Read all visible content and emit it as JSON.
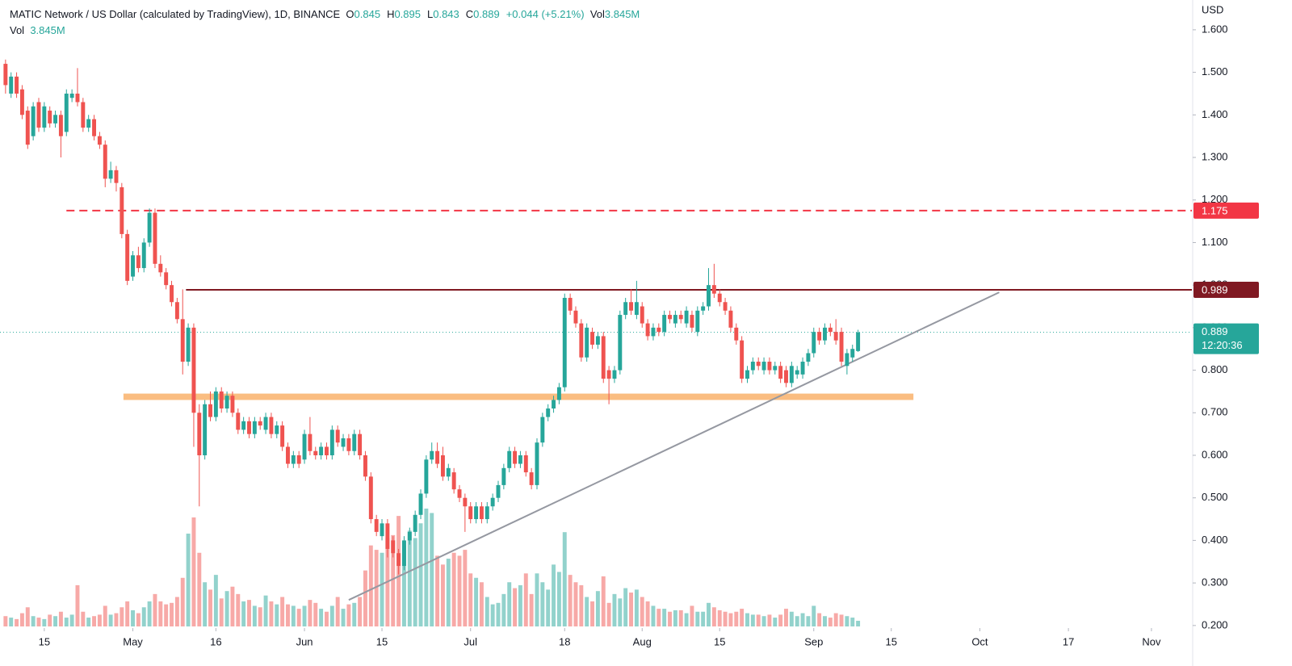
{
  "chart_data": {
    "type": "candlestick",
    "title": "MATIC Network / US Dollar (calculated by TradingView), 1D, BINANCE",
    "header": {
      "items": [
        {
          "key": "O",
          "value": 0.845
        },
        {
          "key": "H",
          "value": 0.895
        },
        {
          "key": "L",
          "value": 0.843
        },
        {
          "key": "C",
          "value": 0.889
        }
      ],
      "change": "+0.044 (+5.21%)",
      "vol_key": "Vol",
      "vol_value": "3.845M"
    },
    "y_axis_label": "USD",
    "up_color": "#26a69a",
    "down_color": "#ef5350",
    "xlim": [
      -1,
      214.3
    ],
    "ylim": [
      0.194,
      1.67
    ],
    "xticks": [
      {
        "value": 7,
        "label": "15"
      },
      {
        "value": 23,
        "label": "May"
      },
      {
        "value": 38,
        "label": "16"
      },
      {
        "value": 54,
        "label": "Jun"
      },
      {
        "value": 68,
        "label": "15"
      },
      {
        "value": 84,
        "label": "Jul"
      },
      {
        "value": 101,
        "label": "18"
      },
      {
        "value": 115,
        "label": "Aug"
      },
      {
        "value": 129,
        "label": "15"
      },
      {
        "value": 146,
        "label": "Sep"
      },
      {
        "value": 160,
        "label": "15"
      },
      {
        "value": 176,
        "label": "Oct"
      },
      {
        "value": 192,
        "label": "17"
      },
      {
        "value": 207,
        "label": "Nov"
      }
    ],
    "yticks": [
      {
        "value": 1.6,
        "label": "1.600"
      },
      {
        "value": 1.5,
        "label": "1.500"
      },
      {
        "value": 1.4,
        "label": "1.400"
      },
      {
        "value": 1.3,
        "label": "1.300"
      },
      {
        "value": 1.2,
        "label": "1.200"
      },
      {
        "value": 1.1,
        "label": "1.100"
      },
      {
        "value": 1.0,
        "label": "1.000"
      },
      {
        "value": 0.9,
        "label": "0.900"
      },
      {
        "value": 0.8,
        "label": "0.800"
      },
      {
        "value": 0.7,
        "label": "0.700"
      },
      {
        "value": 0.6,
        "label": "0.600"
      },
      {
        "value": 0.5,
        "label": "0.500"
      },
      {
        "value": 0.4,
        "label": "0.400"
      },
      {
        "value": 0.3,
        "label": "0.300"
      },
      {
        "value": 0.2,
        "label": "0.200"
      }
    ],
    "ohlc": [
      [
        1.52,
        1.53,
        1.45,
        1.47
      ],
      [
        1.45,
        1.5,
        1.44,
        1.49
      ],
      [
        1.49,
        1.5,
        1.44,
        1.45
      ],
      [
        1.46,
        1.47,
        1.39,
        1.4
      ],
      [
        1.41,
        1.42,
        1.32,
        1.33
      ],
      [
        1.35,
        1.43,
        1.34,
        1.42
      ],
      [
        1.43,
        1.44,
        1.36,
        1.37
      ],
      [
        1.37,
        1.43,
        1.36,
        1.42
      ],
      [
        1.41,
        1.42,
        1.37,
        1.38
      ],
      [
        1.38,
        1.41,
        1.37,
        1.4
      ],
      [
        1.4,
        1.41,
        1.3,
        1.35
      ],
      [
        1.36,
        1.46,
        1.35,
        1.45
      ],
      [
        1.44,
        1.46,
        1.43,
        1.45
      ],
      [
        1.45,
        1.51,
        1.42,
        1.43
      ],
      [
        1.43,
        1.44,
        1.36,
        1.37
      ],
      [
        1.37,
        1.4,
        1.36,
        1.39
      ],
      [
        1.39,
        1.4,
        1.34,
        1.35
      ],
      [
        1.35,
        1.36,
        1.32,
        1.33
      ],
      [
        1.33,
        1.34,
        1.23,
        1.25
      ],
      [
        1.25,
        1.29,
        1.24,
        1.27
      ],
      [
        1.27,
        1.28,
        1.22,
        1.24
      ],
      [
        1.23,
        1.24,
        1.11,
        1.12
      ],
      [
        1.12,
        1.13,
        1.0,
        1.01
      ],
      [
        1.02,
        1.08,
        1.01,
        1.07
      ],
      [
        1.07,
        1.09,
        1.03,
        1.04
      ],
      [
        1.04,
        1.11,
        1.03,
        1.1
      ],
      [
        1.1,
        1.18,
        1.09,
        1.17
      ],
      [
        1.17,
        1.18,
        1.04,
        1.05
      ],
      [
        1.05,
        1.07,
        1.02,
        1.03
      ],
      [
        1.03,
        1.04,
        0.99,
        1.0
      ],
      [
        1.0,
        1.01,
        0.95,
        0.96
      ],
      [
        0.96,
        0.97,
        0.91,
        0.92
      ],
      [
        0.92,
        0.99,
        0.79,
        0.82
      ],
      [
        0.82,
        0.91,
        0.81,
        0.9
      ],
      [
        0.9,
        0.91,
        0.62,
        0.7
      ],
      [
        0.7,
        0.72,
        0.48,
        0.6
      ],
      [
        0.6,
        0.73,
        0.59,
        0.72
      ],
      [
        0.72,
        0.75,
        0.68,
        0.69
      ],
      [
        0.69,
        0.76,
        0.68,
        0.75
      ],
      [
        0.75,
        0.76,
        0.7,
        0.71
      ],
      [
        0.71,
        0.75,
        0.7,
        0.74
      ],
      [
        0.74,
        0.75,
        0.69,
        0.7
      ],
      [
        0.7,
        0.71,
        0.65,
        0.66
      ],
      [
        0.66,
        0.69,
        0.65,
        0.68
      ],
      [
        0.68,
        0.69,
        0.64,
        0.65
      ],
      [
        0.65,
        0.69,
        0.64,
        0.68
      ],
      [
        0.68,
        0.69,
        0.66,
        0.67
      ],
      [
        0.66,
        0.7,
        0.65,
        0.69
      ],
      [
        0.69,
        0.7,
        0.64,
        0.65
      ],
      [
        0.65,
        0.68,
        0.64,
        0.67
      ],
      [
        0.67,
        0.68,
        0.61,
        0.62
      ],
      [
        0.62,
        0.63,
        0.57,
        0.58
      ],
      [
        0.58,
        0.61,
        0.57,
        0.6
      ],
      [
        0.6,
        0.61,
        0.57,
        0.58
      ],
      [
        0.59,
        0.66,
        0.58,
        0.65
      ],
      [
        0.65,
        0.69,
        0.6,
        0.61
      ],
      [
        0.61,
        0.62,
        0.59,
        0.6
      ],
      [
        0.6,
        0.63,
        0.59,
        0.62
      ],
      [
        0.62,
        0.63,
        0.59,
        0.6
      ],
      [
        0.6,
        0.67,
        0.59,
        0.66
      ],
      [
        0.66,
        0.67,
        0.62,
        0.63
      ],
      [
        0.62,
        0.65,
        0.61,
        0.64
      ],
      [
        0.64,
        0.65,
        0.6,
        0.61
      ],
      [
        0.61,
        0.66,
        0.6,
        0.65
      ],
      [
        0.65,
        0.66,
        0.59,
        0.6
      ],
      [
        0.6,
        0.61,
        0.54,
        0.55
      ],
      [
        0.55,
        0.56,
        0.44,
        0.45
      ],
      [
        0.45,
        0.46,
        0.41,
        0.42
      ],
      [
        0.41,
        0.45,
        0.4,
        0.44
      ],
      [
        0.44,
        0.45,
        0.36,
        0.38
      ],
      [
        0.4,
        0.41,
        0.36,
        0.37
      ],
      [
        0.37,
        0.38,
        0.32,
        0.34
      ],
      [
        0.34,
        0.41,
        0.33,
        0.4
      ],
      [
        0.4,
        0.43,
        0.39,
        0.42
      ],
      [
        0.42,
        0.47,
        0.41,
        0.46
      ],
      [
        0.46,
        0.52,
        0.45,
        0.51
      ],
      [
        0.51,
        0.6,
        0.5,
        0.59
      ],
      [
        0.59,
        0.63,
        0.58,
        0.61
      ],
      [
        0.61,
        0.63,
        0.57,
        0.58
      ],
      [
        0.6,
        0.62,
        0.54,
        0.55
      ],
      [
        0.55,
        0.58,
        0.54,
        0.57
      ],
      [
        0.56,
        0.57,
        0.51,
        0.52
      ],
      [
        0.52,
        0.53,
        0.49,
        0.5
      ],
      [
        0.5,
        0.51,
        0.42,
        0.48
      ],
      [
        0.48,
        0.49,
        0.44,
        0.45
      ],
      [
        0.45,
        0.49,
        0.44,
        0.48
      ],
      [
        0.48,
        0.49,
        0.44,
        0.45
      ],
      [
        0.45,
        0.49,
        0.44,
        0.48
      ],
      [
        0.48,
        0.51,
        0.47,
        0.5
      ],
      [
        0.5,
        0.54,
        0.49,
        0.53
      ],
      [
        0.53,
        0.58,
        0.52,
        0.57
      ],
      [
        0.57,
        0.62,
        0.56,
        0.61
      ],
      [
        0.61,
        0.62,
        0.57,
        0.58
      ],
      [
        0.58,
        0.61,
        0.57,
        0.6
      ],
      [
        0.6,
        0.61,
        0.55,
        0.56
      ],
      [
        0.56,
        0.57,
        0.52,
        0.53
      ],
      [
        0.53,
        0.64,
        0.52,
        0.63
      ],
      [
        0.63,
        0.7,
        0.62,
        0.69
      ],
      [
        0.69,
        0.72,
        0.68,
        0.71
      ],
      [
        0.71,
        0.74,
        0.7,
        0.73
      ],
      [
        0.73,
        0.77,
        0.72,
        0.76
      ],
      [
        0.76,
        0.98,
        0.75,
        0.97
      ],
      [
        0.97,
        0.98,
        0.93,
        0.94
      ],
      [
        0.94,
        0.95,
        0.9,
        0.91
      ],
      [
        0.91,
        0.92,
        0.82,
        0.83
      ],
      [
        0.83,
        0.91,
        0.82,
        0.9
      ],
      [
        0.89,
        0.9,
        0.85,
        0.86
      ],
      [
        0.86,
        0.89,
        0.85,
        0.88
      ],
      [
        0.88,
        0.89,
        0.77,
        0.78
      ],
      [
        0.8,
        0.81,
        0.72,
        0.78
      ],
      [
        0.78,
        0.81,
        0.77,
        0.8
      ],
      [
        0.8,
        0.94,
        0.79,
        0.93
      ],
      [
        0.93,
        0.97,
        0.92,
        0.96
      ],
      [
        0.96,
        0.99,
        0.93,
        0.94
      ],
      [
        0.93,
        1.01,
        0.92,
        0.96
      ],
      [
        0.95,
        0.96,
        0.9,
        0.91
      ],
      [
        0.91,
        0.92,
        0.87,
        0.88
      ],
      [
        0.88,
        0.91,
        0.87,
        0.9
      ],
      [
        0.9,
        0.91,
        0.88,
        0.89
      ],
      [
        0.89,
        0.94,
        0.88,
        0.93
      ],
      [
        0.93,
        0.94,
        0.91,
        0.92
      ],
      [
        0.91,
        0.94,
        0.9,
        0.93
      ],
      [
        0.93,
        0.94,
        0.91,
        0.92
      ],
      [
        0.91,
        0.95,
        0.9,
        0.94
      ],
      [
        0.93,
        0.94,
        0.89,
        0.9
      ],
      [
        0.89,
        0.95,
        0.88,
        0.94
      ],
      [
        0.94,
        0.96,
        0.93,
        0.95
      ],
      [
        0.95,
        1.04,
        0.94,
        1.0
      ],
      [
        1.0,
        1.05,
        0.97,
        0.98
      ],
      [
        0.98,
        0.99,
        0.95,
        0.96
      ],
      [
        0.96,
        0.97,
        0.93,
        0.94
      ],
      [
        0.94,
        0.95,
        0.89,
        0.9
      ],
      [
        0.9,
        0.91,
        0.86,
        0.87
      ],
      [
        0.87,
        0.88,
        0.77,
        0.78
      ],
      [
        0.78,
        0.81,
        0.77,
        0.8
      ],
      [
        0.8,
        0.83,
        0.79,
        0.82
      ],
      [
        0.82,
        0.83,
        0.8,
        0.81
      ],
      [
        0.8,
        0.83,
        0.79,
        0.82
      ],
      [
        0.82,
        0.83,
        0.79,
        0.8
      ],
      [
        0.8,
        0.82,
        0.79,
        0.81
      ],
      [
        0.81,
        0.82,
        0.77,
        0.78
      ],
      [
        0.8,
        0.81,
        0.76,
        0.77
      ],
      [
        0.77,
        0.82,
        0.76,
        0.81
      ],
      [
        0.79,
        0.81,
        0.78,
        0.8
      ],
      [
        0.79,
        0.83,
        0.78,
        0.82
      ],
      [
        0.82,
        0.85,
        0.81,
        0.84
      ],
      [
        0.84,
        0.9,
        0.83,
        0.89
      ],
      [
        0.89,
        0.9,
        0.86,
        0.87
      ],
      [
        0.87,
        0.91,
        0.86,
        0.9
      ],
      [
        0.9,
        0.91,
        0.88,
        0.89
      ],
      [
        0.89,
        0.92,
        0.86,
        0.87
      ],
      [
        0.89,
        0.9,
        0.81,
        0.82
      ],
      [
        0.81,
        0.85,
        0.79,
        0.84
      ],
      [
        0.83,
        0.86,
        0.82,
        0.85
      ],
      [
        0.845,
        0.895,
        0.843,
        0.889
      ]
    ],
    "volume": [
      7,
      6,
      5,
      9,
      13,
      7,
      6,
      5,
      8,
      7,
      10,
      6,
      8,
      28,
      10,
      6,
      7,
      8,
      14,
      8,
      9,
      13,
      17,
      11,
      9,
      13,
      17,
      22,
      17,
      15,
      16,
      20,
      33,
      63,
      74,
      50,
      30,
      25,
      35,
      19,
      24,
      27,
      22,
      17,
      18,
      14,
      13,
      21,
      17,
      15,
      20,
      15,
      14,
      12,
      14,
      18,
      16,
      12,
      10,
      14,
      20,
      12,
      15,
      16,
      20,
      38,
      55,
      52,
      50,
      60,
      62,
      75,
      55,
      65,
      60,
      70,
      80,
      77,
      48,
      42,
      46,
      50,
      48,
      52,
      36,
      33,
      30,
      20,
      15,
      16,
      22,
      30,
      26,
      28,
      36,
      22,
      36,
      30,
      25,
      42,
      37,
      64,
      35,
      30,
      28,
      20,
      17,
      24,
      34,
      16,
      22,
      19,
      26,
      23,
      25,
      20,
      17,
      14,
      12,
      12,
      10,
      11,
      11,
      9,
      14,
      10,
      10,
      16,
      13,
      11,
      10,
      9,
      10,
      12,
      9,
      8,
      8,
      7,
      8,
      6,
      8,
      12,
      10,
      7,
      9,
      7,
      14,
      9,
      7,
      6,
      9,
      8,
      7,
      6,
      3.845
    ],
    "levels": [
      {
        "value": 1.175,
        "color": "#f23645",
        "style": "dashed",
        "from": 11
      },
      {
        "value": 0.989,
        "color": "#801922",
        "style": "solid",
        "from": 32.6
      }
    ],
    "zone": {
      "low": 0.73,
      "high": 0.745,
      "from": 21.3,
      "to": 164,
      "color": "#f9b26b"
    },
    "trendline": {
      "x": [
        62,
        179.5
      ],
      "y": [
        0.26,
        0.983
      ],
      "color": "#9598a1"
    },
    "last_price": {
      "value": 0.889,
      "countdown": "12:20:36"
    }
  }
}
